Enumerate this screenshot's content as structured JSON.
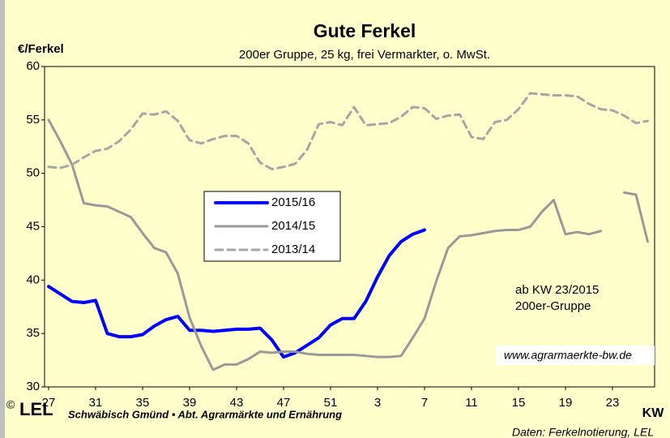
{
  "chart_data": {
    "type": "line",
    "title": "Gute Ferkel",
    "subtitle": "200er Gruppe, 25 kg, frei Vermarkter, o. MwSt.",
    "y_axis_label": "€/Ferkel",
    "x_axis_label": "KW",
    "categories": [
      27,
      null,
      null,
      null,
      31,
      null,
      null,
      null,
      35,
      null,
      null,
      null,
      39,
      null,
      null,
      null,
      43,
      null,
      null,
      null,
      47,
      null,
      null,
      null,
      51,
      null,
      null,
      null,
      3,
      null,
      null,
      null,
      7,
      null,
      null,
      null,
      11,
      null,
      null,
      null,
      15,
      null,
      null,
      null,
      19,
      null,
      null,
      null,
      23,
      null,
      null,
      null
    ],
    "ylim": [
      30,
      60
    ],
    "yticks": [
      30,
      35,
      40,
      45,
      50,
      55,
      60
    ],
    "grid": false,
    "legend": "center-left",
    "series": [
      {
        "name": "2015/16",
        "color": "#0000ff",
        "style": "solid",
        "values": [
          39.4,
          38.7,
          38.0,
          37.9,
          38.1,
          35.0,
          34.7,
          34.7,
          34.9,
          35.7,
          36.3,
          36.6,
          35.3,
          35.3,
          35.2,
          35.3,
          35.4,
          35.4,
          35.5,
          34.4,
          32.8,
          33.2,
          33.9,
          34.6,
          35.8,
          36.4,
          36.4,
          38.0,
          40.3,
          42.3,
          43.6,
          44.3,
          44.7,
          null,
          null,
          null,
          null,
          null,
          null,
          null,
          null,
          null,
          null,
          null,
          null,
          null,
          null,
          null,
          null,
          null,
          null,
          null
        ]
      },
      {
        "name": "2014/15",
        "color": "#999999",
        "style": "solid",
        "values": [
          55.0,
          53.0,
          50.8,
          47.2,
          47.0,
          46.9,
          46.4,
          45.9,
          44.4,
          43.0,
          42.6,
          40.6,
          36.5,
          33.8,
          31.6,
          32.1,
          32.1,
          32.6,
          33.3,
          33.2,
          33.3,
          33.3,
          33.1,
          33.0,
          33.0,
          33.0,
          33.0,
          32.9,
          32.8,
          32.8,
          32.9,
          34.6,
          36.4,
          39.9,
          43.0,
          44.1,
          44.2,
          44.4,
          44.6,
          44.7,
          44.7,
          45.0,
          46.4,
          47.5,
          44.3,
          44.5,
          44.3,
          44.6,
          null,
          48.2,
          48.0,
          43.6
        ]
      },
      {
        "name": "2013/14",
        "color": "#a6a6a6",
        "style": "dashed",
        "values": [
          50.6,
          50.5,
          50.8,
          51.5,
          52.1,
          52.3,
          53.0,
          54.1,
          55.6,
          55.5,
          55.8,
          54.9,
          53.1,
          52.8,
          53.2,
          53.5,
          53.5,
          52.8,
          51.0,
          50.4,
          50.6,
          50.9,
          52.2,
          54.6,
          54.8,
          54.5,
          56.2,
          54.5,
          54.6,
          54.7,
          55.3,
          56.2,
          56.1,
          55.1,
          55.4,
          55.5,
          53.4,
          53.2,
          54.8,
          55.0,
          56.0,
          57.5,
          57.4,
          57.3,
          57.3,
          57.2,
          56.5,
          56.0,
          55.9,
          55.4,
          54.7,
          54.9
        ]
      }
    ],
    "annotations": [
      "ab KW 23/2015",
      "200er-Gruppe",
      "www.agrarmaerkte-bw.de"
    ],
    "footer": {
      "copyright": "©",
      "logo": "LEL",
      "organization": "Schwäbisch Gmünd • Abt. Agrarmärkte und Ernährung",
      "source": "Daten: Ferkelnotierung, LEL"
    }
  }
}
